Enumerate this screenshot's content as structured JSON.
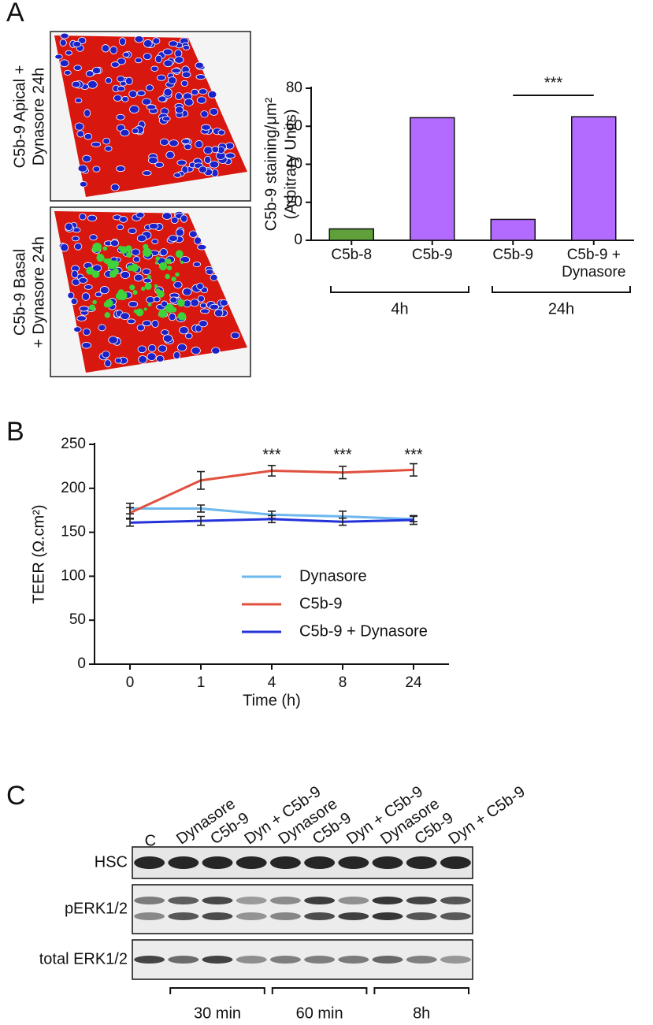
{
  "panel_labels": [
    "A",
    "B",
    "C"
  ],
  "images": [
    {
      "label_lines": [
        "C5b-9 Apical +",
        "Dynasore 24h"
      ]
    },
    {
      "label_lines": [
        "C5b-9 Basal",
        "+ Dynasore 24h"
      ]
    }
  ],
  "chart_data": [
    {
      "type": "bar",
      "ylabel": "C5b-9 staining/μm²",
      "ylabel_note": "(Arbitrary Units)",
      "categories": [
        "C5b-8",
        "C5b-9",
        "C5b-9",
        "C5b-9 + Dynasore"
      ],
      "values": [
        6,
        64.5,
        11,
        65
      ],
      "colors": [
        "#5fa03a",
        "#b36bff",
        "#b36bff",
        "#b36bff"
      ],
      "ylim": [
        0,
        80
      ],
      "yticks": [
        0,
        20,
        40,
        60,
        80
      ],
      "group_labels": [
        "4h",
        "24h"
      ],
      "significance": "***"
    },
    {
      "type": "line",
      "xlabel": "Time (h)",
      "ylabel": "TEER (Ω.cm²)",
      "categories": [
        "0",
        "1",
        "4",
        "8",
        "24"
      ],
      "series": [
        {
          "name": "Dynasore",
          "color": "#6cb8ee",
          "values": [
            177,
            177,
            170,
            168,
            165
          ],
          "errors": [
            6,
            4,
            4,
            6,
            3
          ]
        },
        {
          "name": "C5b-9",
          "color": "#e0503f",
          "values": [
            172,
            209,
            220,
            218,
            221
          ],
          "errors": [
            6,
            10,
            6,
            7,
            7
          ]
        },
        {
          "name": "C5b-9 + Dynasore",
          "color": "#2532d8",
          "values": [
            161,
            163,
            165,
            162,
            164
          ],
          "errors": [
            4,
            5,
            4,
            4,
            5
          ]
        }
      ],
      "ylim": [
        0,
        250
      ],
      "yticks": [
        0,
        50,
        100,
        150,
        200,
        250
      ],
      "annotations": [
        {
          "x": "4",
          "text": "***"
        },
        {
          "x": "8",
          "text": "***"
        },
        {
          "x": "24",
          "text": "***"
        }
      ]
    }
  ],
  "blot": {
    "lanes": [
      "C",
      "Dynasore",
      "C5b-9",
      "Dyn + C5b-9",
      "Dynasore",
      "C5b-9",
      "Dyn + C5b-9",
      "Dynasore",
      "C5b-9",
      "Dyn + C5b-9"
    ],
    "rows": [
      "HSC",
      "pERK1/2",
      "total ERK1/2"
    ],
    "groups": [
      "30 min",
      "60 min",
      "8h"
    ]
  }
}
